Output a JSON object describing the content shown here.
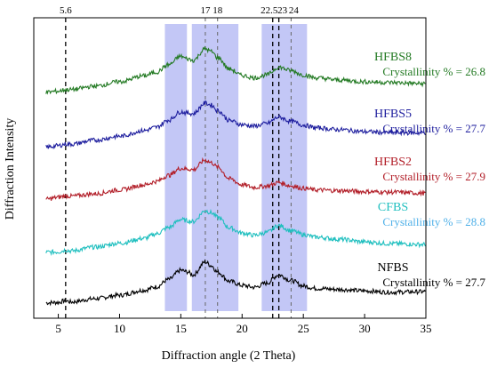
{
  "chart_data": {
    "type": "line",
    "title": "",
    "xlabel": "Diffraction angle (2 Theta)",
    "ylabel": "Diffraction Intensity",
    "xlim": [
      3,
      35
    ],
    "x_ticks": [
      5,
      10,
      15,
      20,
      25,
      30,
      35
    ],
    "y_ticks": [],
    "grid": false,
    "shaded_bands": [
      {
        "x0": 13.7,
        "x1": 15.5
      },
      {
        "x0": 15.9,
        "x1": 19.7
      },
      {
        "x0": 21.6,
        "x1": 25.3
      }
    ],
    "reference_lines": [
      {
        "x": 5.6,
        "label": "5.6",
        "style": "dashed-black"
      },
      {
        "x": 17,
        "label": "17",
        "style": "dashed-gray"
      },
      {
        "x": 18,
        "label": "18",
        "style": "dashed-gray"
      },
      {
        "x": 22.5,
        "label": "22.5",
        "style": "dashed-black"
      },
      {
        "x": 23,
        "label": "23",
        "style": "dashed-black"
      },
      {
        "x": 24,
        "label": "24",
        "style": "dashed-gray"
      }
    ],
    "x_sample": [
      4,
      5,
      5.6,
      6,
      8,
      10,
      12,
      13,
      14,
      15,
      15.5,
      16,
      17,
      17.5,
      18,
      19,
      20,
      21,
      22,
      23,
      24,
      25,
      26,
      28,
      30,
      32,
      35
    ],
    "series": [
      {
        "name": "NFBS",
        "color": "#000000",
        "crystallinity": "Crystallinity % = 27.7",
        "label_color": "#000000",
        "values": [
          0.4,
          0.6,
          1.6,
          0.8,
          2.6,
          4.5,
          7.2,
          9.0,
          13.0,
          18.0,
          17.2,
          15.5,
          22.5,
          20.5,
          17.0,
          12.0,
          9.8,
          8.8,
          11.0,
          15.5,
          12.5,
          9.5,
          8.2,
          7.6,
          6.8,
          6.1,
          6.4
        ]
      },
      {
        "name": "CFBS",
        "color": "#1fbfbf",
        "crystallinity": "Crystallinity % = 28.8",
        "label_color": "#4fb0e8",
        "values": [
          27.8,
          28.0,
          29.0,
          28.5,
          30.6,
          32.7,
          35.3,
          37.8,
          41.2,
          45.6,
          44.9,
          44.4,
          50.4,
          49.2,
          46.8,
          41.0,
          38.2,
          37.0,
          38.5,
          42.3,
          39.5,
          37.4,
          36.0,
          34.8,
          33.4,
          32.5,
          32.0
        ]
      },
      {
        "name": "HFBS2",
        "color": "#b21e28",
        "crystallinity": "Crystallinity % = 27.9",
        "label_color": "#b21e28",
        "values": [
          56.5,
          57.6,
          58.4,
          58.2,
          59.5,
          61.6,
          64.3,
          66.2,
          69.5,
          73.3,
          73.0,
          72.6,
          77.8,
          76.4,
          73.9,
          67.6,
          64.4,
          63.0,
          63.7,
          65.6,
          63.8,
          62.5,
          61.6,
          61.2,
          60.7,
          60.4,
          59.8
        ]
      },
      {
        "name": "HFBS5",
        "color": "#1e1e9e",
        "crystallinity": "Crystallinity % = 27.7",
        "label_color": "#1e1e9e",
        "values": [
          84.8,
          85.6,
          86.5,
          86.4,
          88.6,
          90.7,
          93.8,
          95.6,
          99.5,
          104.0,
          103.3,
          103.0,
          108.7,
          107.6,
          104.7,
          99.2,
          97.0,
          96.2,
          97.6,
          101.1,
          98.8,
          96.8,
          95.3,
          94.3,
          93.2,
          92.7,
          92.5
        ]
      },
      {
        "name": "HFBS8",
        "color": "#237a23",
        "crystallinity": "Crystallinity % = 26.8",
        "label_color": "#237a23",
        "values": [
          114.6,
          115.2,
          116.0,
          116.0,
          117.9,
          120.3,
          123.5,
          125.5,
          129.5,
          134.1,
          132.8,
          131.9,
          138.1,
          136.6,
          133.4,
          127.1,
          123.7,
          122.4,
          124.0,
          128.2,
          126.3,
          124.0,
          122.4,
          121.2,
          120.3,
          119.9,
          119.2
        ]
      }
    ]
  }
}
